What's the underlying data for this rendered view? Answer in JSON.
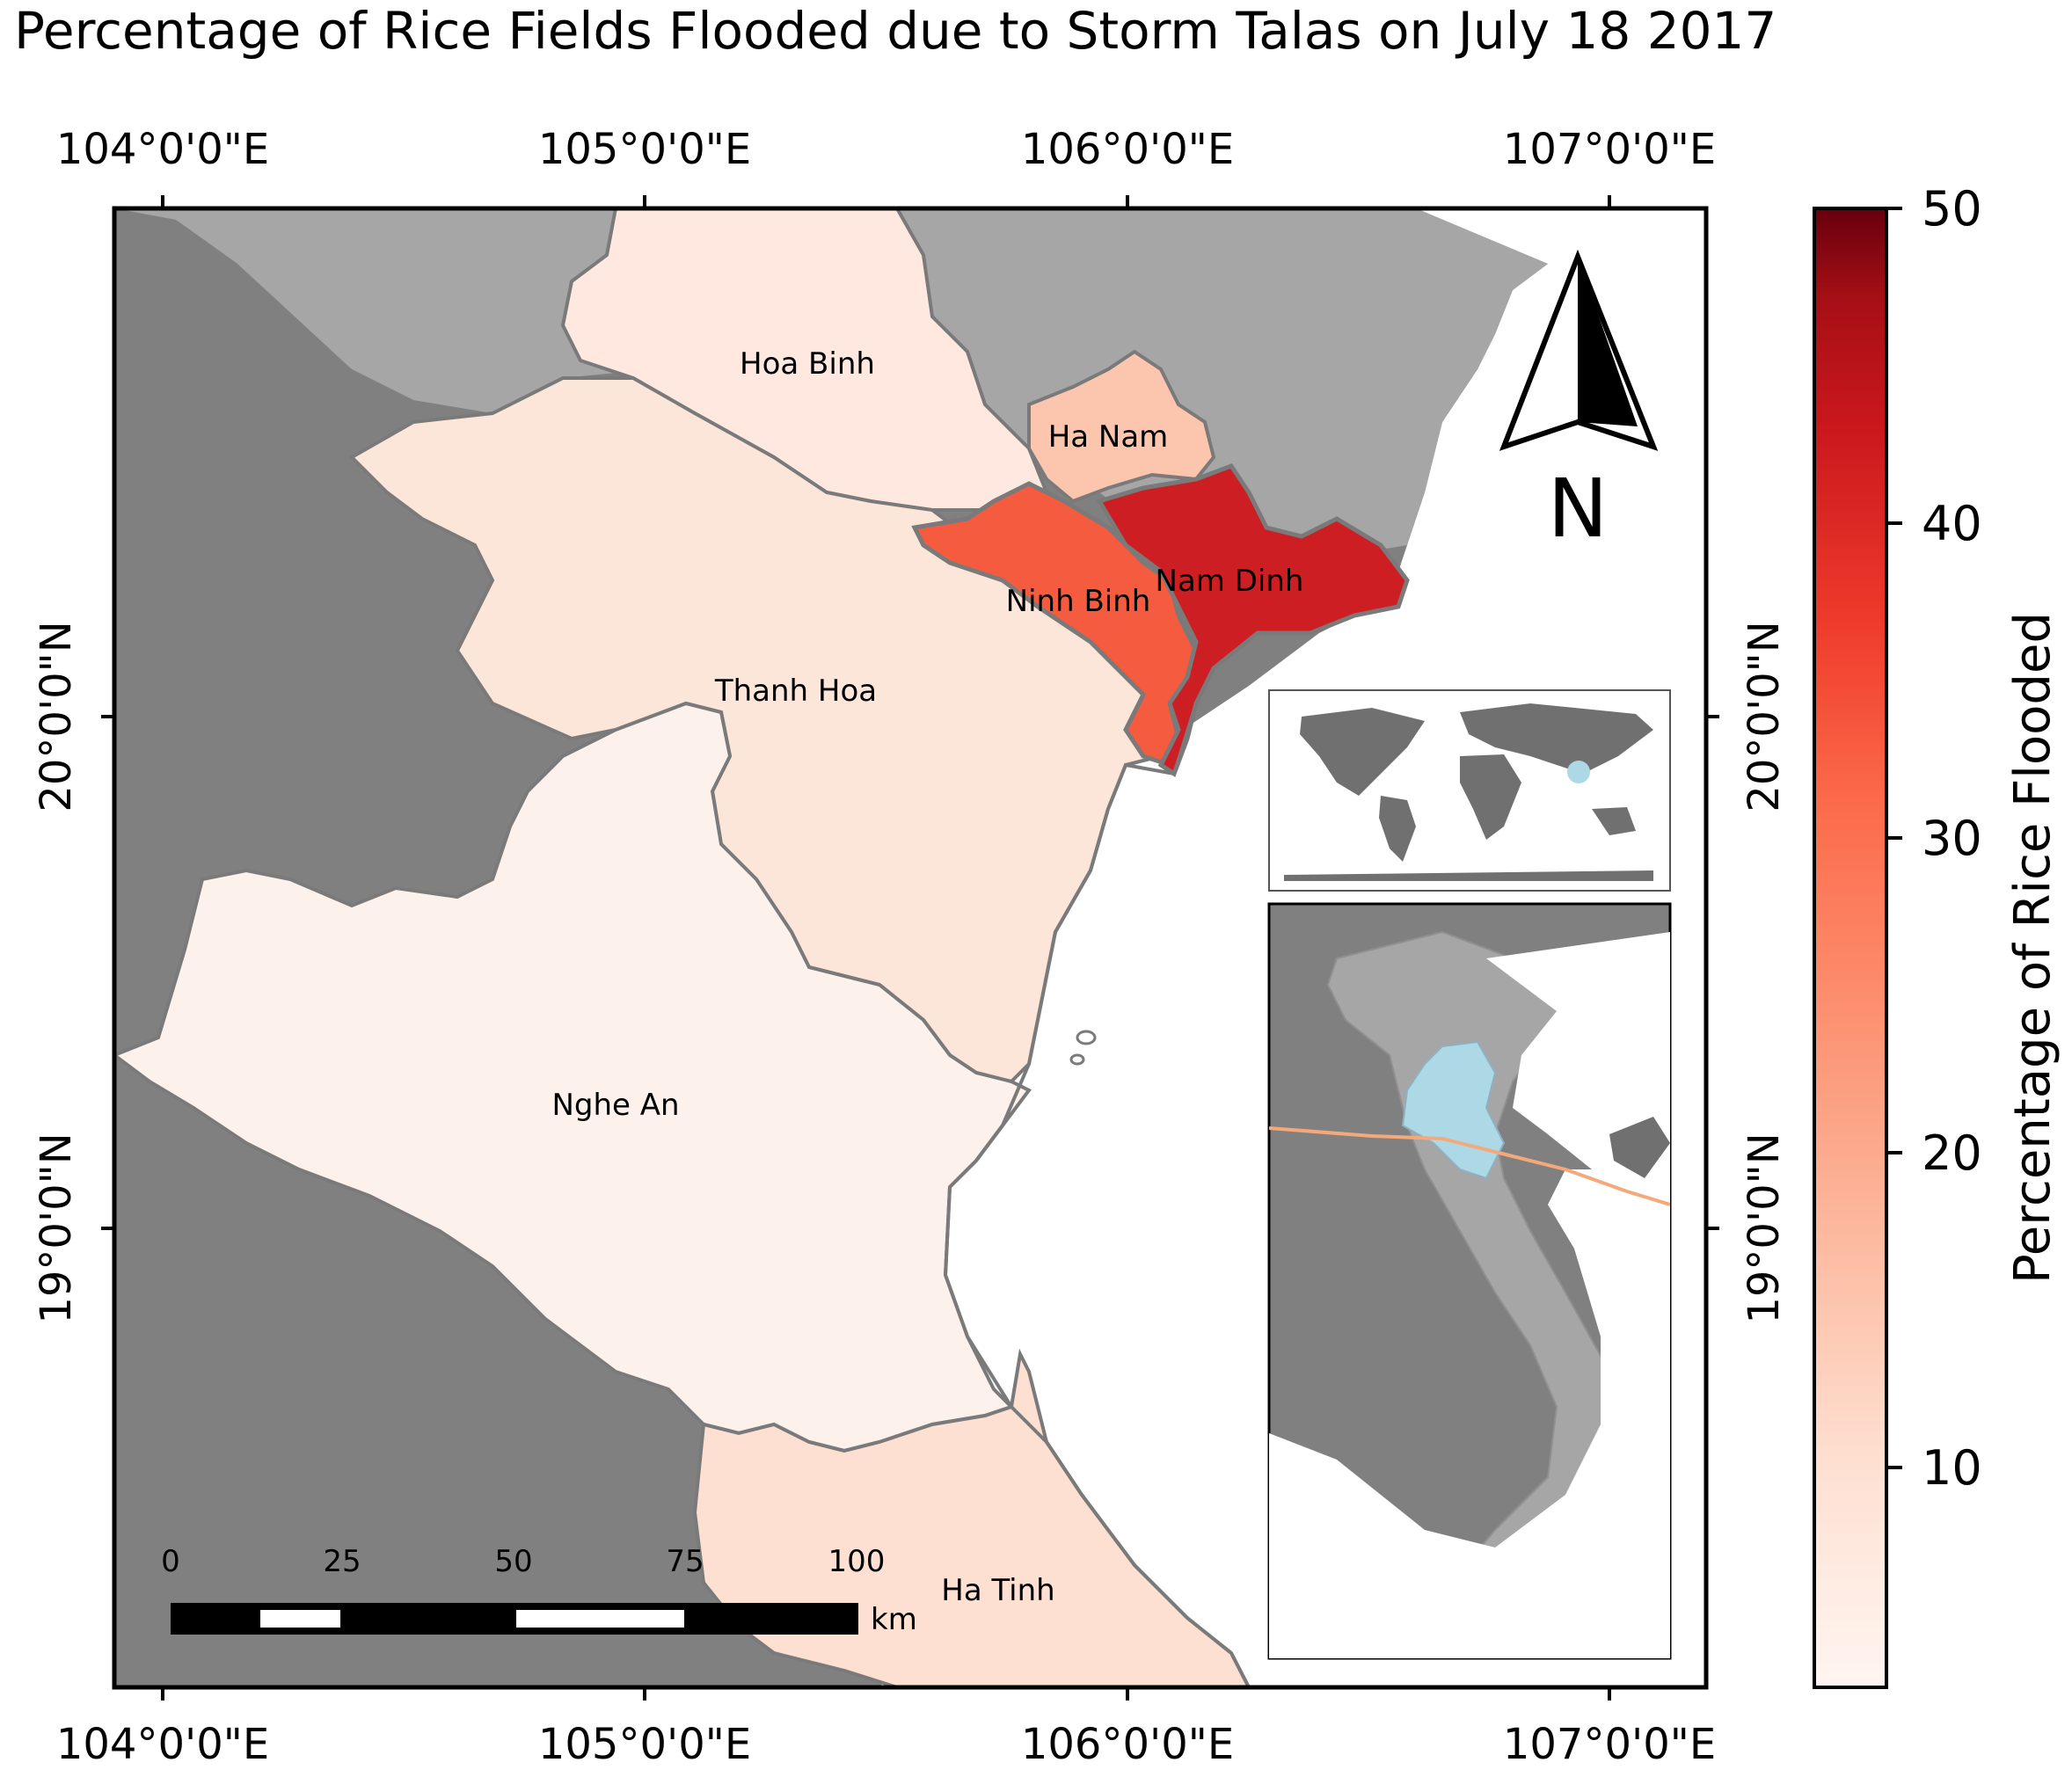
{
  "title": "Percentage of Rice Fields Flooded due to Storm Talas on July 18 2017",
  "longitude_ticks": [
    "104°0'0\"E",
    "105°0'0\"E",
    "106°0'0\"E",
    "107°0'0\"E"
  ],
  "latitude_ticks": [
    "20°0'0\"N",
    "19°0'0\"N"
  ],
  "provinces": [
    {
      "name": "Hoa Binh",
      "percent_flooded": 5
    },
    {
      "name": "Ha Nam",
      "percent_flooded": 12
    },
    {
      "name": "Ninh Binh",
      "percent_flooded": 26
    },
    {
      "name": "Nam Dinh",
      "percent_flooded": 36
    },
    {
      "name": "Thanh Hoa",
      "percent_flooded": 7
    },
    {
      "name": "Nghe An",
      "percent_flooded": 4
    },
    {
      "name": "Ha Tinh",
      "percent_flooded": 8
    }
  ],
  "north_arrow": {
    "label": "N"
  },
  "scale_bar": {
    "labels": [
      "0",
      "25",
      "50",
      "75",
      "100"
    ],
    "unit": "km"
  },
  "colorbar": {
    "label": "Percentage of Rice Flooded",
    "ticks": [
      "50",
      "40",
      "30",
      "20",
      "10"
    ],
    "range": [
      3,
      50
    ],
    "colormap": "Reds"
  },
  "colors": {
    "land_dark": "#808080",
    "land_light": "#a6a6a6",
    "sea": "#ffffff",
    "boundary": "#7a7a7a",
    "inset_highlight": "#add8e6",
    "storm_track": "#f4a97a"
  },
  "insets": [
    {
      "name": "world-overview-inset"
    },
    {
      "name": "vietnam-locator-inset"
    }
  ]
}
